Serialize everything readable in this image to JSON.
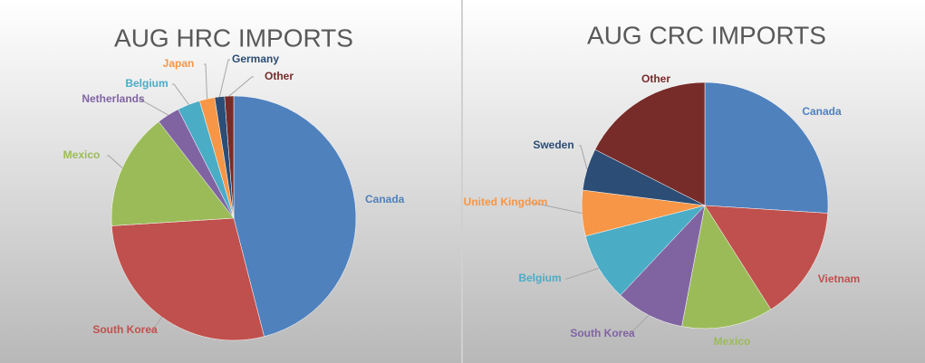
{
  "chart_data": [
    {
      "type": "pie",
      "title": "AUG HRC IMPORTS",
      "categories": [
        "Canada",
        "South Korea",
        "Mexico",
        "Netherlands",
        "Belgium",
        "Japan",
        "Germany",
        "Other"
      ],
      "values": [
        46,
        28,
        15.5,
        3,
        3,
        2,
        1.3,
        1.2
      ],
      "colors": [
        "#4f81bd",
        "#c0504d",
        "#9bbb59",
        "#8064a2",
        "#4bacc6",
        "#f79646",
        "#2c4d75",
        "#772c2a"
      ]
    },
    {
      "type": "pie",
      "title": "AUG CRC IMPORTS",
      "categories": [
        "Canada",
        "Vietnam",
        "Mexico",
        "South Korea",
        "Belgium",
        "United Kingdom",
        "Sweden",
        "Other"
      ],
      "values": [
        26,
        15,
        12,
        9,
        9,
        6,
        5.5,
        17.5
      ],
      "colors": [
        "#4f81bd",
        "#c0504d",
        "#9bbb59",
        "#8064a2",
        "#4bacc6",
        "#f79646",
        "#2c4d75",
        "#772c2a"
      ]
    }
  ]
}
